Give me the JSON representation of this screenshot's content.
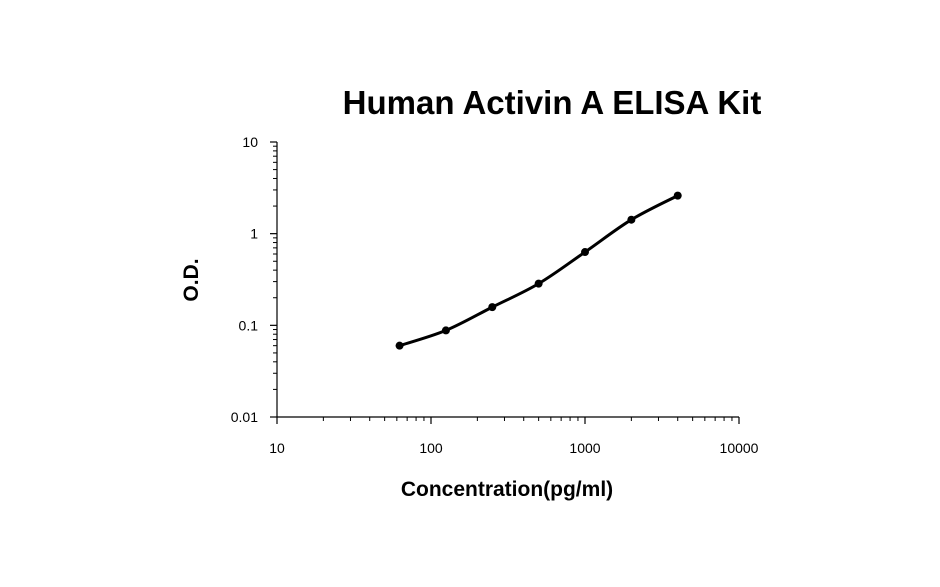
{
  "chart_data": {
    "type": "scatter",
    "title": "Human Activin A ELISA Kit",
    "xlabel": "Concentration(pg/ml)",
    "ylabel": "O.D.",
    "x_scale": "log",
    "y_scale": "log",
    "xlim": [
      10,
      10000
    ],
    "ylim": [
      0.01,
      10
    ],
    "x_ticks": [
      10,
      100,
      1000,
      10000
    ],
    "x_tick_labels": [
      "10",
      "100",
      "1000",
      "10000"
    ],
    "y_ticks": [
      0.01,
      0.1,
      1,
      10
    ],
    "y_tick_labels": [
      "0.01",
      "0.1",
      "1",
      "10"
    ],
    "grid": false,
    "legend": "none",
    "series": [
      {
        "x": [
          62.5,
          125,
          250,
          500,
          1000,
          2000,
          4000
        ],
        "y": [
          0.06,
          0.088,
          0.158,
          0.285,
          0.63,
          1.42,
          2.6
        ],
        "color": "#000000",
        "marker": "circle",
        "line": "smooth"
      }
    ]
  }
}
